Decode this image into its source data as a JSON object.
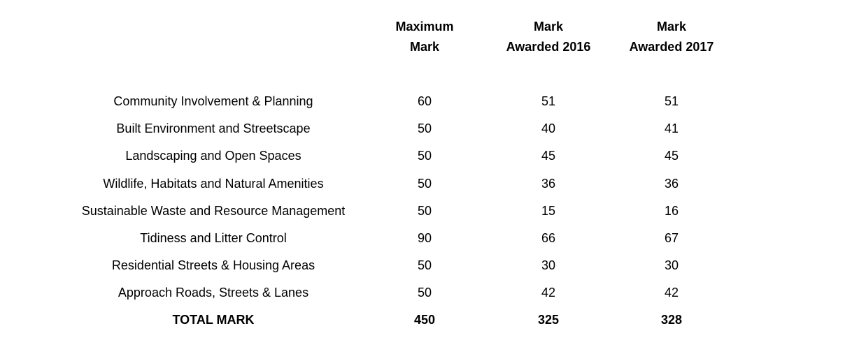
{
  "headers": {
    "maximum": [
      "Maximum",
      "Mark"
    ],
    "awarded_2016": [
      "Mark",
      "Awarded 2016"
    ],
    "awarded_2017": [
      "Mark",
      "Awarded 2017"
    ]
  },
  "rows": [
    {
      "category": "Community Involvement & Planning",
      "maximum": "60",
      "awarded_2016": "51",
      "awarded_2017": "51"
    },
    {
      "category": "Built Environment and Streetscape",
      "maximum": "50",
      "awarded_2016": "40",
      "awarded_2017": "41"
    },
    {
      "category": "Landscaping and Open Spaces",
      "maximum": "50",
      "awarded_2016": "45",
      "awarded_2017": "45"
    },
    {
      "category": "Wildlife, Habitats and Natural Amenities",
      "maximum": "50",
      "awarded_2016": "36",
      "awarded_2017": "36"
    },
    {
      "category": "Sustainable Waste and Resource Management",
      "maximum": "50",
      "awarded_2016": "15",
      "awarded_2017": "16"
    },
    {
      "category": "Tidiness and Litter Control",
      "maximum": "90",
      "awarded_2016": "66",
      "awarded_2017": "67"
    },
    {
      "category": "Residential Streets & Housing Areas",
      "maximum": "50",
      "awarded_2016": "30",
      "awarded_2017": "30"
    },
    {
      "category": "Approach Roads, Streets & Lanes",
      "maximum": "50",
      "awarded_2016": "42",
      "awarded_2017": "42"
    }
  ],
  "total": {
    "label": "TOTAL MARK",
    "maximum": "450",
    "awarded_2016": "325",
    "awarded_2017": "328"
  }
}
